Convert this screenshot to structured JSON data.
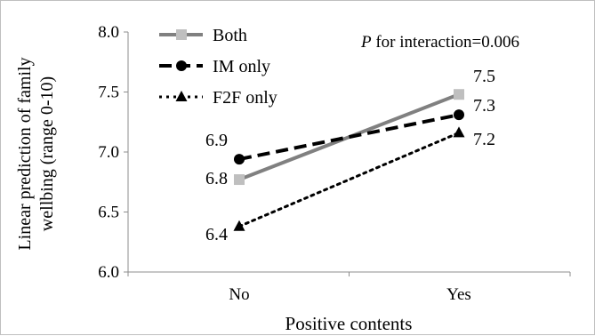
{
  "chart_data": {
    "type": "line",
    "title": "",
    "annotation": {
      "prefix": "P",
      "text": " for interaction=0.006"
    },
    "xlabel": "Positive contents",
    "ylabel_lines": [
      "Linear prediction of family",
      "wellbing (range 0-10)"
    ],
    "categories": [
      "No",
      "Yes"
    ],
    "ylim": [
      6.0,
      8.0
    ],
    "yticks": [
      "6.0",
      "6.5",
      "7.0",
      "7.5",
      "8.0"
    ],
    "grid": false,
    "legend_position": "top-left",
    "series": [
      {
        "name": "Both",
        "values": [
          6.77,
          7.48
        ],
        "labels": [
          "6.8",
          "7.5"
        ],
        "color": "#808080",
        "dash": "solid",
        "marker": "square"
      },
      {
        "name": "IM only",
        "values": [
          6.94,
          7.31
        ],
        "labels": [
          "6.9",
          "7.3"
        ],
        "color": "#000000",
        "dash": "dashed",
        "marker": "circle"
      },
      {
        "name": "F2F only",
        "values": [
          6.38,
          7.16
        ],
        "labels": [
          "6.4",
          "7.2"
        ],
        "color": "#000000",
        "dash": "dotted",
        "marker": "triangle"
      }
    ]
  }
}
